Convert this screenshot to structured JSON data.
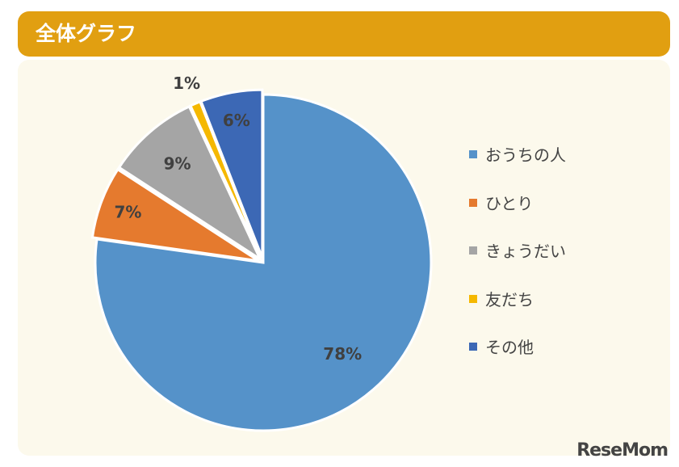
{
  "header": {
    "title": "全体グラフ"
  },
  "chart_data": {
    "type": "pie",
    "categories": [
      "おうちの人",
      "ひとり",
      "きょうだい",
      "友だち",
      "その他"
    ],
    "values": [
      78,
      7,
      9,
      1,
      6
    ],
    "labels": [
      "78%",
      "7%",
      "9%",
      "1%",
      "6%"
    ],
    "colors": [
      "#5592c9",
      "#e57a2e",
      "#a5a5a5",
      "#f5b800",
      "#3c68b5"
    ],
    "legend_position": "right"
  },
  "watermark": "ReseMom"
}
